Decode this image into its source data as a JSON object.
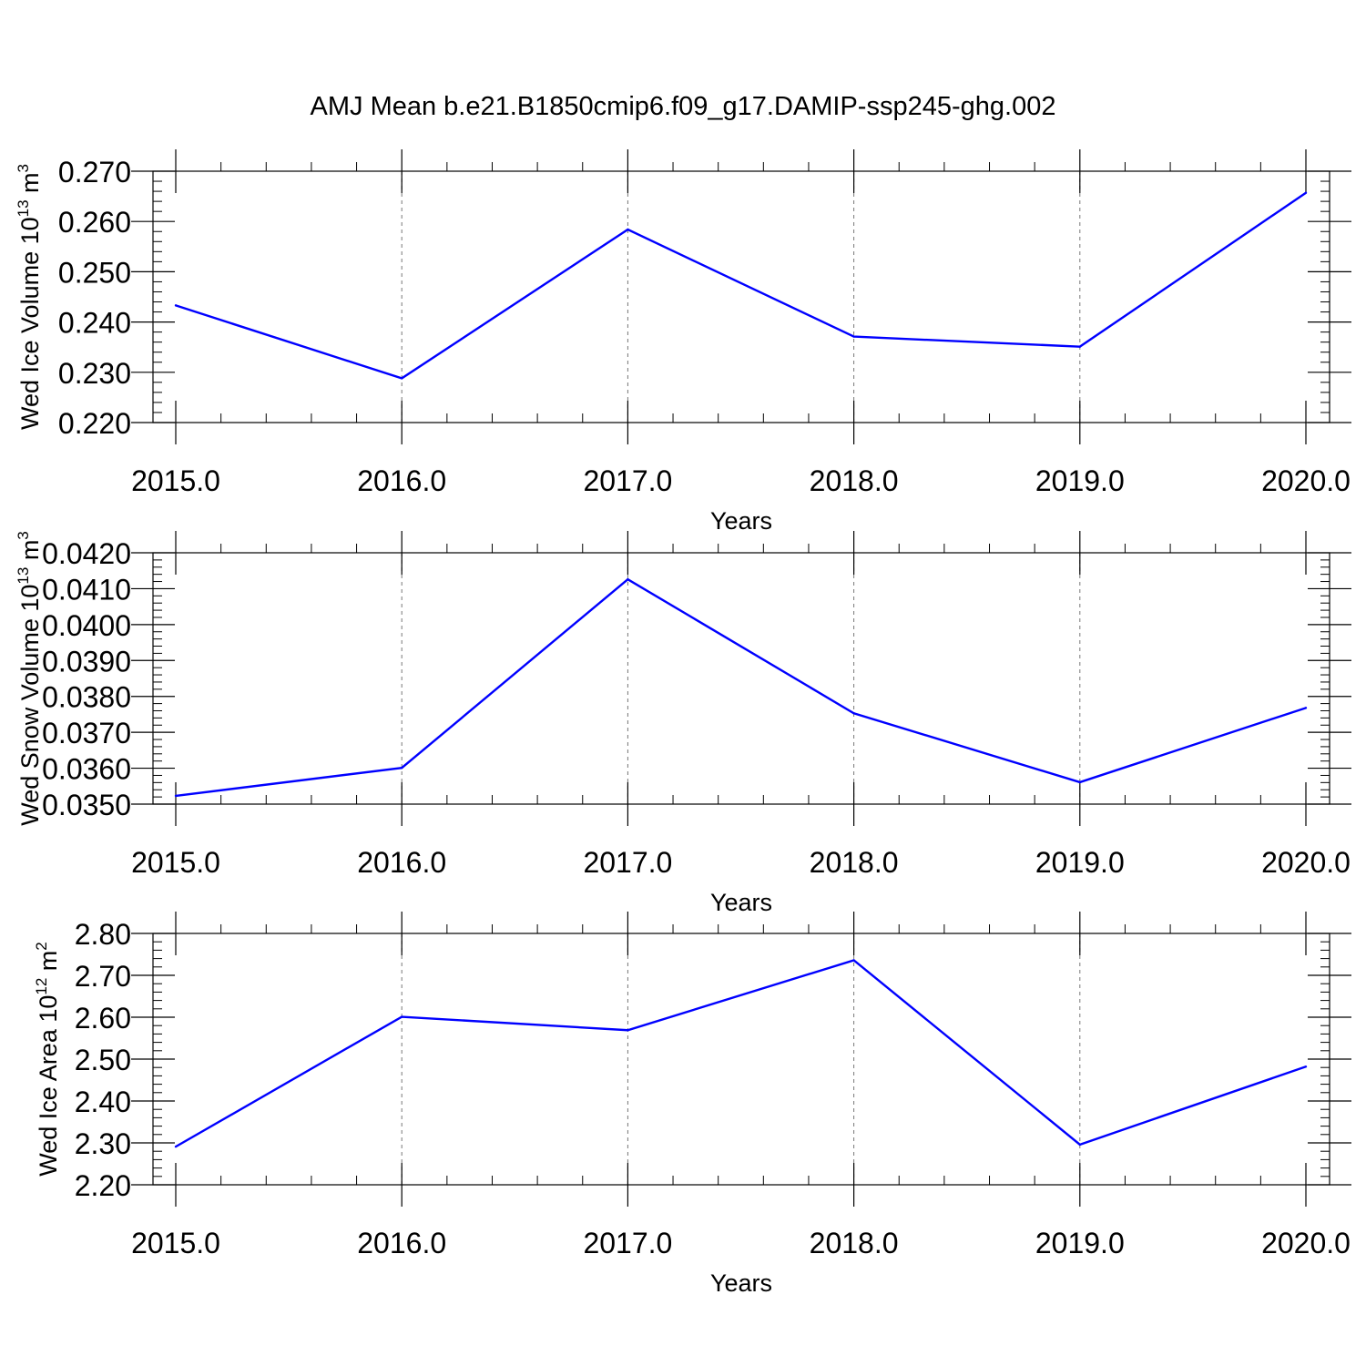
{
  "title": "AMJ Mean b.e21.B1850cmip6.f09_g17.DAMIP-ssp245-ghg.002",
  "line_color": "#0000ff",
  "chart_data": [
    {
      "type": "line",
      "xlabel": "Years",
      "ylabel": {
        "text": "Wed Ice Volume 10",
        "sup": "13",
        "unit": " m",
        "unit_sup": "3"
      },
      "x": [
        2015,
        2016,
        2017,
        2018,
        2019,
        2020
      ],
      "xticks": [
        "2015.0",
        "2016.0",
        "2017.0",
        "2018.0",
        "2019.0",
        "2020.0"
      ],
      "xlim": [
        2015,
        2020
      ],
      "ylim": [
        0.22,
        0.27
      ],
      "yticks": [
        0.22,
        0.23,
        0.24,
        0.25,
        0.26,
        0.27
      ],
      "yticklabels": [
        "0.220",
        "0.230",
        "0.240",
        "0.250",
        "0.260",
        "0.270"
      ],
      "grid": "vertical dashed at major x ticks",
      "series": [
        {
          "values": [
            0.2433,
            0.2288,
            0.2584,
            0.2371,
            0.2351,
            0.2657
          ]
        }
      ]
    },
    {
      "type": "line",
      "xlabel": "Years",
      "ylabel": {
        "text": "Wed Snow Volume 10",
        "sup": "13",
        "unit": " m",
        "unit_sup": "3"
      },
      "x": [
        2015,
        2016,
        2017,
        2018,
        2019,
        2020
      ],
      "xticks": [
        "2015.0",
        "2016.0",
        "2017.0",
        "2018.0",
        "2019.0",
        "2020.0"
      ],
      "xlim": [
        2015,
        2020
      ],
      "ylim": [
        0.035,
        0.042
      ],
      "yticks": [
        0.035,
        0.036,
        0.037,
        0.038,
        0.039,
        0.04,
        0.041,
        0.042
      ],
      "yticklabels": [
        "0.0350",
        "0.0360",
        "0.0370",
        "0.0380",
        "0.0390",
        "0.0400",
        "0.0410",
        "0.0420"
      ],
      "grid": "vertical dashed at major x ticks",
      "series": [
        {
          "values": [
            0.03523,
            0.03601,
            0.04126,
            0.03753,
            0.03561,
            0.03768
          ]
        }
      ]
    },
    {
      "type": "line",
      "xlabel": "Years",
      "ylabel": {
        "text": "Wed Ice Area 10",
        "sup": "12",
        "unit": " m",
        "unit_sup": "2"
      },
      "x": [
        2015,
        2016,
        2017,
        2018,
        2019,
        2020
      ],
      "xticks": [
        "2015.0",
        "2016.0",
        "2017.0",
        "2018.0",
        "2019.0",
        "2020.0"
      ],
      "xlim": [
        2015,
        2020
      ],
      "ylim": [
        2.2,
        2.8
      ],
      "yticks": [
        2.2,
        2.3,
        2.4,
        2.5,
        2.6,
        2.7,
        2.8
      ],
      "yticklabels": [
        "2.20",
        "2.30",
        "2.40",
        "2.50",
        "2.60",
        "2.70",
        "2.80"
      ],
      "grid": "vertical dashed at major x ticks",
      "series": [
        {
          "values": [
            2.291,
            2.601,
            2.569,
            2.736,
            2.296,
            2.482
          ]
        }
      ]
    }
  ]
}
